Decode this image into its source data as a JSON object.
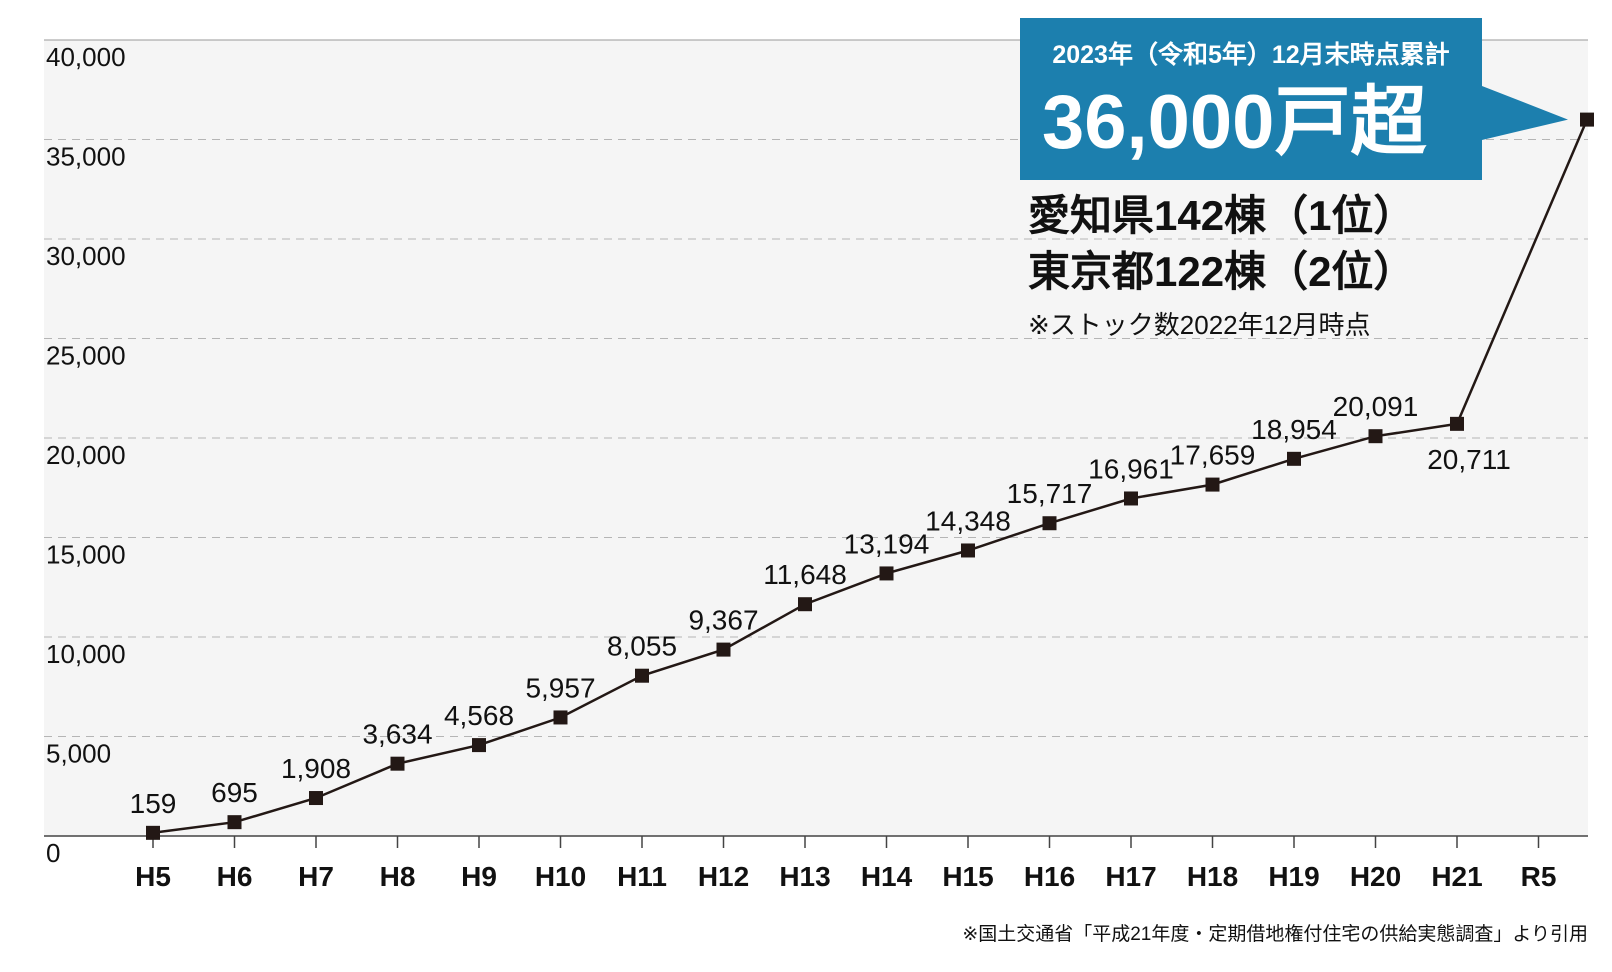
{
  "chart_data": {
    "type": "line",
    "title": "",
    "xlabel": "",
    "ylabel": "",
    "categories": [
      "H5",
      "H6",
      "H7",
      "H8",
      "H9",
      "H10",
      "H11",
      "H12",
      "H13",
      "H14",
      "H15",
      "H16",
      "H17",
      "H18",
      "H19",
      "H20",
      "H21",
      "R5"
    ],
    "series": [
      {
        "values": [
          159,
          695,
          1908,
          3634,
          4568,
          5957,
          8055,
          9367,
          11648,
          13194,
          14348,
          15717,
          16961,
          17659,
          18954,
          20091,
          20711,
          36000
        ],
        "labels": [
          "159",
          "695",
          "1,908",
          "3,634",
          "4,568",
          "5,957",
          "8,055",
          "9,367",
          "11,648",
          "13,194",
          "14,348",
          "15,717",
          "16,961",
          "17,659",
          "18,954",
          "20,091",
          "20,711",
          ""
        ]
      }
    ],
    "yticks": [
      0,
      5000,
      10000,
      15000,
      20000,
      25000,
      30000,
      35000,
      40000
    ],
    "ytick_labels": [
      "0",
      "5,000",
      "10,000",
      "15,000",
      "20,000",
      "25,000",
      "30,000",
      "35,000",
      "40,000"
    ],
    "ylim": [
      0,
      40000
    ],
    "grid": "horizontal-dashed",
    "colors": {
      "line": "#231815",
      "callout": "#1c7fae",
      "plot_bg": "#f5f5f5"
    }
  },
  "callout": {
    "subtitle": "2023年（令和5年）12月末時点累計",
    "headline": "36,000戸超"
  },
  "ranking": {
    "line1": "愛知県142棟（1位）",
    "line2": "東京都122棟（2位）",
    "note": "※ストック数2022年12月時点"
  },
  "source": "※国土交通省「平成21年度・定期借地権付住宅の供給実態調査」より引用"
}
